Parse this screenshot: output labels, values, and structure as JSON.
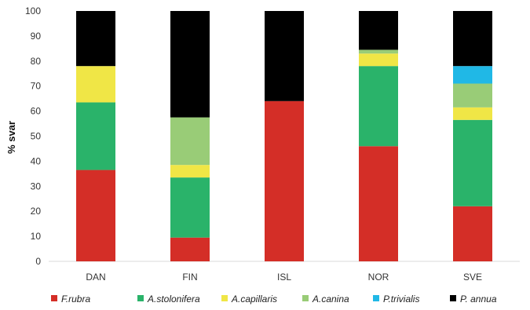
{
  "chart_data": {
    "type": "bar",
    "stacked": true,
    "title": "",
    "xlabel": "",
    "ylabel": "% svar",
    "ylim": [
      0,
      100
    ],
    "yticks": [
      "0",
      "10",
      "20",
      "30",
      "40",
      "50",
      "60",
      "70",
      "80",
      "90",
      "100"
    ],
    "grid": false,
    "legend_position": "bottom",
    "categories": [
      "DAN",
      "FIN",
      "ISL",
      "NOR",
      "SVE"
    ],
    "series": [
      {
        "name": "F.rubra",
        "color": "#d42e27",
        "values": [
          36.5,
          9.5,
          64,
          46,
          22
        ]
      },
      {
        "name": "A.stolonifera",
        "color": "#2ab36a",
        "values": [
          27,
          24,
          0,
          32,
          34.5
        ]
      },
      {
        "name": "A.capillaris",
        "color": "#f0e646",
        "values": [
          14.5,
          5,
          0,
          5,
          5
        ]
      },
      {
        "name": "A.canina",
        "color": "#99cc77",
        "values": [
          0,
          19,
          0,
          1.5,
          9.5
        ]
      },
      {
        "name": "P.trivialis",
        "color": "#20b8e6",
        "values": [
          0,
          0,
          0,
          0,
          7
        ]
      },
      {
        "name": "P. annua",
        "color": "#000000",
        "values": [
          22,
          42.5,
          36,
          15.5,
          22
        ]
      }
    ]
  }
}
